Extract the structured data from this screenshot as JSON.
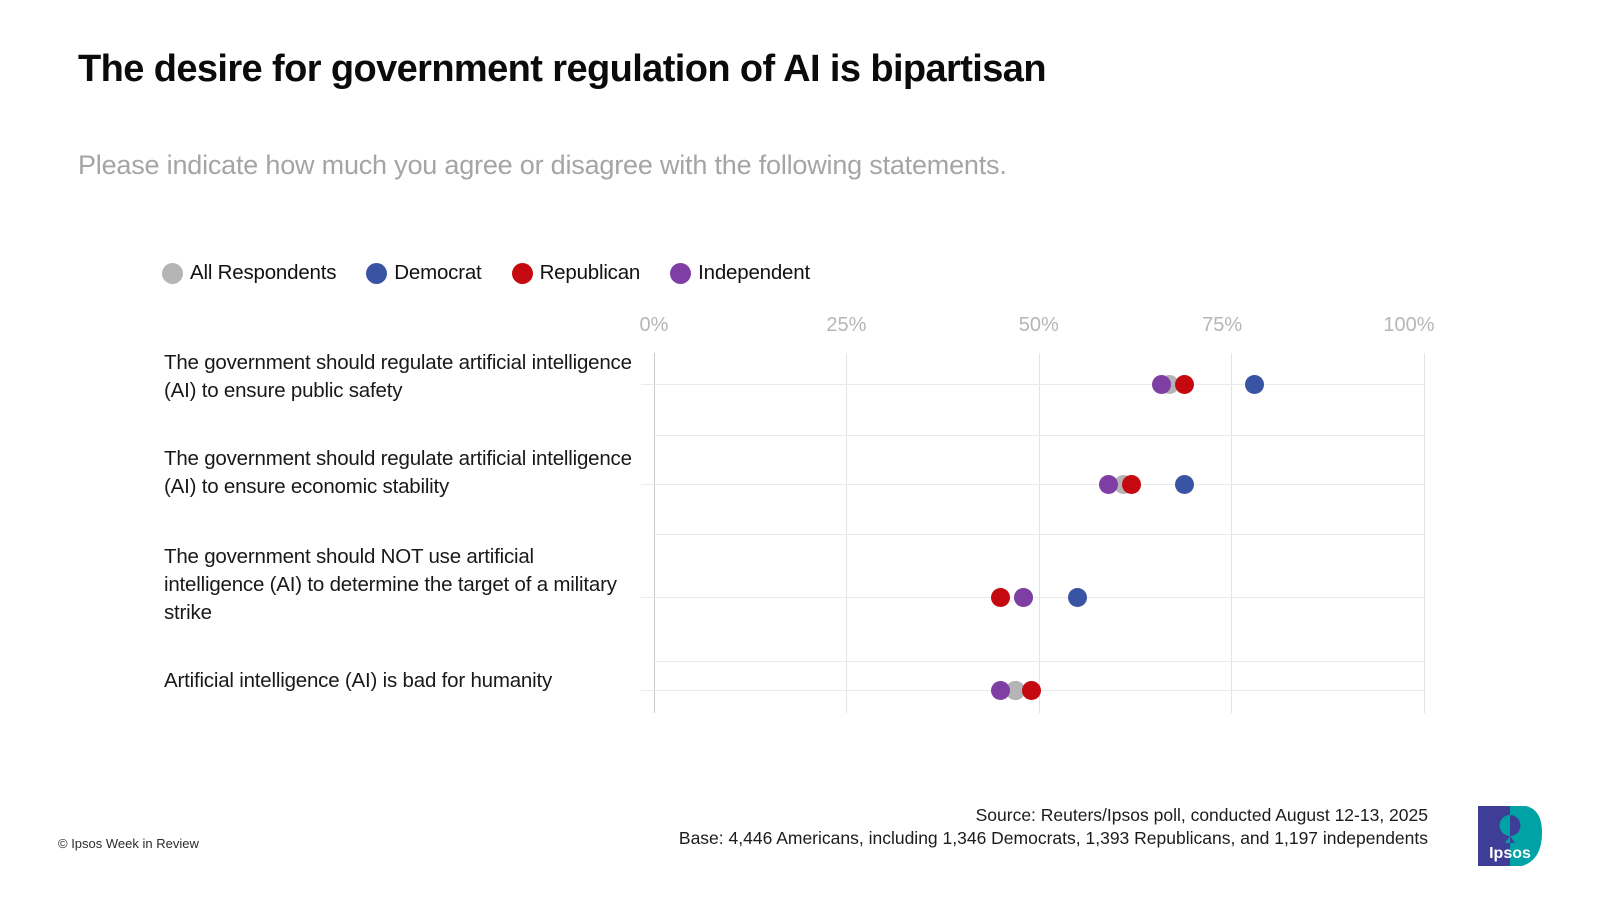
{
  "slide": {
    "title": "The desire for government regulation of AI is bipartisan",
    "subtitle": "Please indicate how much you agree or disagree with the following statements.",
    "footer": {
      "source_line": "Source: Reuters/Ipsos poll, conducted August 12-13, 2025",
      "base_line": "Base: 4,446 Americans, including 1,346 Democrats, 1,393 Republicans, and 1,197 independents",
      "copyright": "© Ipsos Week in Review"
    },
    "logo": {
      "text": "Ipsos",
      "navy": "#3e3e96",
      "teal": "#00a3a5"
    }
  },
  "chart_data": {
    "type": "scatter",
    "subtype": "dot-plot",
    "categories": [
      "The government should regulate artificial intelligence (AI) to ensure public safety",
      "The government should regulate artificial intelligence (AI) to ensure economic stability",
      "The government should NOT use artificial intelligence (AI) to determine the target of a military strike",
      "Artificial intelligence (AI) is bad for humanity"
    ],
    "series": [
      {
        "name": "All Respondents",
        "color": "#b5b5b5",
        "values": [
          67,
          61,
          48,
          47
        ]
      },
      {
        "name": "Democrat",
        "color": "#3a54a4",
        "values": [
          78,
          69,
          55,
          47
        ]
      },
      {
        "name": "Republican",
        "color": "#c40a10",
        "values": [
          69,
          62,
          45,
          49
        ]
      },
      {
        "name": "Independent",
        "color": "#7e3ea4",
        "values": [
          66,
          59,
          48,
          45
        ]
      }
    ],
    "x_ticks": [
      0,
      25,
      50,
      75,
      100
    ],
    "tick_labels": [
      "0%",
      "25%",
      "50%",
      "75%",
      "100%"
    ],
    "xlim": [
      0,
      100
    ],
    "unit": "%",
    "grid": true,
    "legend_position": "top"
  }
}
